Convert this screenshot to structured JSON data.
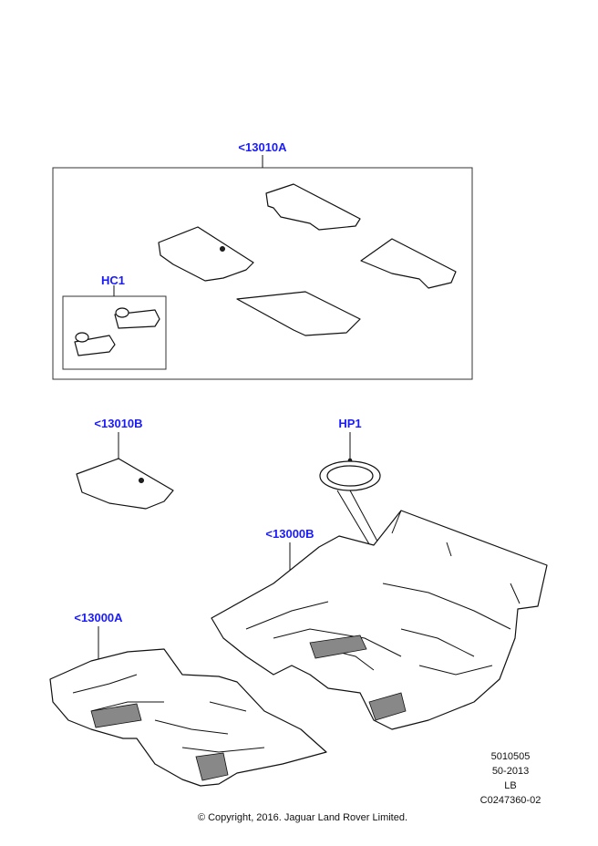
{
  "callouts": {
    "set_13010A": "<13010A",
    "hc1": "HC1",
    "mat_13010B": "<13010B",
    "hp1": "HP1",
    "carpet_13000B": "<13000B",
    "carpet_13000A": "<13000A"
  },
  "reference": {
    "line1": "5010505",
    "line2": "50-2013",
    "line3": "LB",
    "line4": "C0247360-02"
  },
  "copyright": "© Copyright, 2016. Jaguar Land Rover Limited.",
  "colors": {
    "callout": "#1a1aff"
  }
}
